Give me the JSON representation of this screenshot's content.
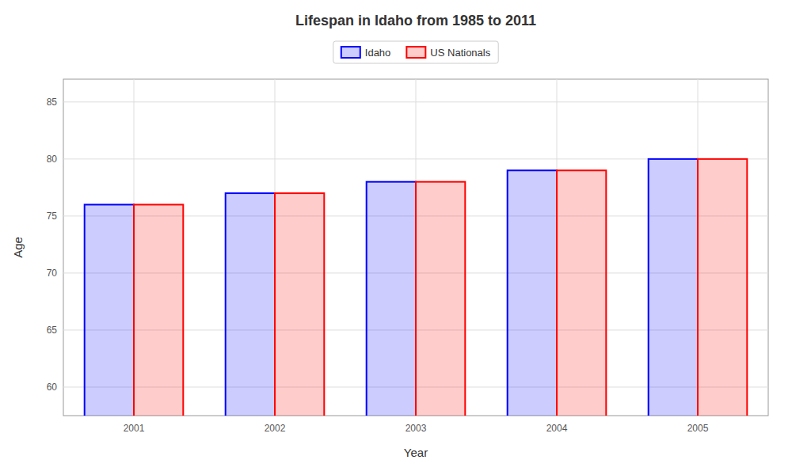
{
  "chart_data": {
    "type": "bar",
    "title": "Lifespan in Idaho from 1985 to 2011",
    "x_label": "Year",
    "y_label": "Age",
    "categories": [
      "2001",
      "2002",
      "2003",
      "2004",
      "2005"
    ],
    "series": [
      {
        "name": "Idaho",
        "color": "#0000ff",
        "values": [
          76,
          77,
          78,
          79,
          80
        ]
      },
      {
        "name": "US Nationals",
        "color": "#ff0000",
        "values": [
          76,
          77,
          78,
          79,
          80
        ]
      }
    ],
    "ylim": [
      57.5,
      87
    ],
    "yticks": [
      60,
      65,
      70,
      75,
      80,
      85
    ],
    "grid": true,
    "legend": "top"
  }
}
